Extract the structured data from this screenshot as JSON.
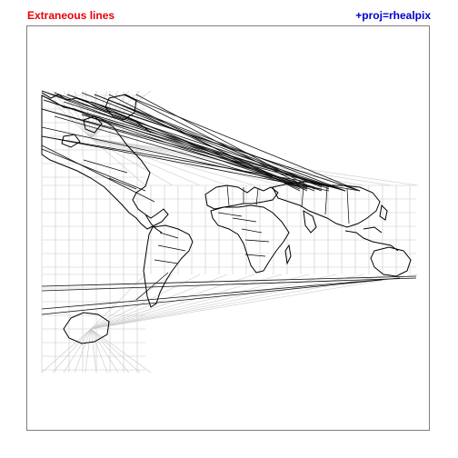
{
  "header": {
    "left_title": "Extraneous lines",
    "right_title": "+proj=rhealpix"
  },
  "colors": {
    "left_title": "#e8000b",
    "right_title": "#0000cc",
    "coastline": "#000000",
    "graticule": "#c8c8c8",
    "frame": "#7f7f7f"
  },
  "map": {
    "projection": "rhealpix",
    "layers": [
      "world-coastlines-and-borders",
      "graticule",
      "extraneous-wrap-lines"
    ]
  }
}
